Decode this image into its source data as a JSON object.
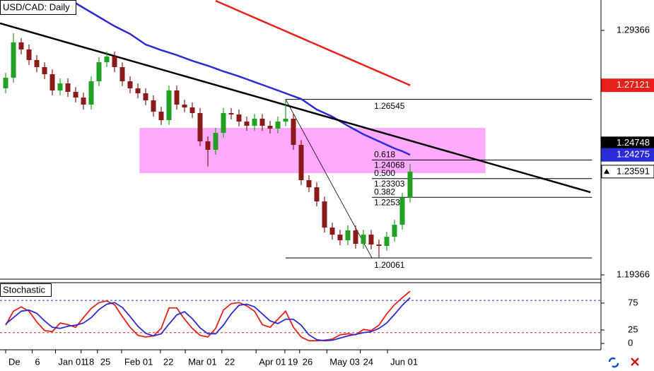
{
  "chart_data": [
    {
      "type": "candlestick",
      "title": "USD/CAD: Daily",
      "xlim": [
        -0.73,
        76.55
      ],
      "ylim": [
        1.19193,
        1.30609
      ],
      "yticks": [
        1.29366,
        1.19366
      ],
      "xticks": [
        {
          "value": 0,
          "label": "De"
        },
        {
          "value": 3.4,
          "label": "6"
        },
        {
          "value": 6.4,
          "label": "Jan 01"
        },
        {
          "value": 9.7,
          "label": "18"
        },
        {
          "value": 11.8,
          "label": "25"
        },
        {
          "value": 14.9,
          "label": "Feb 01"
        },
        {
          "value": 19.9,
          "label": "22"
        },
        {
          "value": 23.1,
          "label": "Mar 01"
        },
        {
          "value": 27.8,
          "label": "22"
        },
        {
          "value": 32.2,
          "label": "Apr 01"
        },
        {
          "value": 35.9,
          "label": "19"
        },
        {
          "value": 37.8,
          "label": "26"
        },
        {
          "value": 41.3,
          "label": "May 03"
        },
        {
          "value": 45.6,
          "label": "24"
        },
        {
          "value": 49.1,
          "label": "Jun 01"
        }
      ],
      "up_color": "#22a022",
      "down_color": "#8b1a1a",
      "open": [
        1.27,
        1.2743,
        1.28875,
        1.28586,
        1.28152,
        1.27863,
        1.27574,
        1.26909,
        1.27198,
        1.26852,
        1.2662,
        1.26331,
        1.27285,
        1.28065,
        1.28297,
        1.27863,
        1.27285,
        1.26996,
        1.26794,
        1.26505,
        1.26042,
        1.25696,
        1.26909,
        1.26331,
        1.26216,
        1.25985,
        1.24828,
        1.24482,
        1.25175,
        1.25985,
        1.25927,
        1.25638,
        1.25464,
        1.25753,
        1.25464,
        1.25349,
        1.25638,
        1.25753,
        1.24684,
        1.23239,
        1.2295,
        1.22372,
        1.21302,
        1.21013,
        1.20782,
        1.21187,
        1.20638,
        1.21013,
        1.20609,
        1.20551,
        1.20927,
        1.21418,
        1.22516
      ],
      "high": [
        1.2763,
        1.2925,
        1.2905,
        1.2879,
        1.2835,
        1.2806,
        1.2777,
        1.274,
        1.274,
        1.2705,
        1.2682,
        1.2749,
        1.2827,
        1.285,
        1.285,
        1.2806,
        1.2749,
        1.272,
        1.27,
        1.2671,
        1.2624,
        1.2711,
        1.2711,
        1.2653,
        1.2642,
        1.2619,
        1.2503,
        1.2538,
        1.2619,
        1.2619,
        1.2613,
        1.2584,
        1.2595,
        1.2595,
        1.2566,
        1.2584,
        1.2654,
        1.2595,
        1.2488,
        1.2344,
        1.2315,
        1.2257,
        1.215,
        1.2121,
        1.2139,
        1.2139,
        1.2121,
        1.2121,
        1.2081,
        1.2113,
        1.2162,
        1.2272,
        1.239
      ],
      "low": [
        1.268,
        1.2723,
        1.2839,
        1.2795,
        1.2766,
        1.2737,
        1.2671,
        1.2671,
        1.2665,
        1.2642,
        1.2613,
        1.2613,
        1.2709,
        1.2787,
        1.2766,
        1.2709,
        1.268,
        1.2659,
        1.2631,
        1.2584,
        1.255,
        1.255,
        1.2613,
        1.2602,
        1.2579,
        1.2463,
        1.238,
        1.2428,
        1.2498,
        1.2573,
        1.2544,
        1.2526,
        1.2526,
        1.2526,
        1.2515,
        1.2515,
        1.2544,
        1.2448,
        1.2304,
        1.2275,
        1.2217,
        1.211,
        1.2081,
        1.2058,
        1.2058,
        1.2044,
        1.2044,
        1.2041,
        1.2006,
        1.2035,
        1.2073,
        1.2122,
        1.2232
      ],
      "close": [
        1.2743,
        1.28875,
        1.28586,
        1.28152,
        1.27863,
        1.27574,
        1.26909,
        1.27198,
        1.26852,
        1.2662,
        1.26331,
        1.27285,
        1.28065,
        1.28297,
        1.27863,
        1.27285,
        1.26996,
        1.26794,
        1.26505,
        1.26042,
        1.25696,
        1.26909,
        1.26331,
        1.26216,
        1.25985,
        1.24828,
        1.24482,
        1.25175,
        1.25985,
        1.25927,
        1.25638,
        1.25464,
        1.25753,
        1.25464,
        1.25349,
        1.25638,
        1.25753,
        1.24684,
        1.23239,
        1.2295,
        1.22372,
        1.21302,
        1.21013,
        1.20782,
        1.21187,
        1.20638,
        1.21013,
        1.20609,
        1.20551,
        1.20927,
        1.21418,
        1.22516,
        1.23591
      ],
      "lines": [
        {
          "color": "#2b2bd6",
          "values": [
            null,
            null,
            null,
            null,
            null,
            null,
            null,
            null,
            1.30667,
            1.30479,
            1.30291,
            1.30103,
            1.29915,
            1.29727,
            1.29539,
            1.2938,
            1.29221,
            1.29005,
            1.28788,
            1.28673,
            1.28557,
            1.28456,
            1.28355,
            1.28239,
            1.28123,
            1.28022,
            1.27921,
            1.27806,
            1.2769,
            1.27589,
            1.27487,
            1.27372,
            1.27256,
            1.27141,
            1.27025,
            1.2691,
            1.26794,
            1.26678,
            1.26562,
            1.26346,
            1.26129,
            1.25985,
            1.2584,
            1.25652,
            1.25464,
            1.25291,
            1.25117,
            1.24973,
            1.24828,
            1.24684,
            1.24539,
            1.24424,
            1.24275
          ]
        },
        {
          "color": "#e8201a",
          "values": [
            null,
            null,
            null,
            null,
            null,
            null,
            null,
            null,
            null,
            null,
            null,
            null,
            null,
            null,
            null,
            null,
            null,
            null,
            null,
            null,
            null,
            null,
            null,
            null,
            null,
            null,
            null,
            1.30577,
            1.30439,
            1.30301,
            1.30162,
            1.30024,
            1.29886,
            1.29748,
            1.29609,
            1.29471,
            1.29333,
            1.29195,
            1.29057,
            1.28918,
            1.2878,
            1.28642,
            1.28504,
            1.28365,
            1.28227,
            1.28089,
            1.27951,
            1.27813,
            1.27674,
            1.27536,
            1.27398,
            1.2726,
            1.27121
          ]
        }
      ],
      "trendline": {
        "x": [
          -0.73,
          75.2
        ],
        "y": [
          1.29655,
          1.22747
        ],
        "price": 1.24748,
        "color": "#000000"
      },
      "zone": {
        "x": [
          17.2,
          61.7
        ],
        "y": [
          1.23528,
          1.25378
        ],
        "color": "#ffaaff"
      },
      "fibonacci": {
        "x": [
          36,
          47.1
        ],
        "extend_to": 75.4,
        "high": 1.26545,
        "low": 1.20061,
        "levels": [
          {
            "ratio": "0.618",
            "price": 1.24068
          },
          {
            "ratio": "0.500",
            "price": 1.23303
          },
          {
            "ratio": "0.382",
            "price": 1.22538
          }
        ]
      }
    },
    {
      "type": "line",
      "title": "Stochastic",
      "xlim": [
        -0.73,
        76.55
      ],
      "ylim": [
        -11.8,
        113
      ],
      "yticks": [
        0,
        25,
        75
      ],
      "levels": [
        {
          "value": 80,
          "color": "#2b2bd6"
        },
        {
          "value": 20,
          "color": "#e8201a"
        }
      ],
      "series": [
        {
          "color": "#e8201a",
          "values": [
            34,
            60,
            68,
            60,
            40,
            24,
            22,
            38,
            35,
            30,
            48,
            65,
            76,
            79,
            72,
            50,
            30,
            15,
            12,
            14,
            28,
            66,
            66,
            45,
            28,
            15,
            12,
            28,
            62,
            74,
            76,
            70,
            60,
            35,
            30,
            45,
            60,
            30,
            12,
            5,
            5,
            6,
            8,
            16,
            18,
            16,
            26,
            24,
            34,
            55,
            72,
            85,
            97
          ]
        },
        {
          "color": "#2b2bd6",
          "values": [
            36,
            48,
            60,
            62,
            56,
            42,
            30,
            28,
            32,
            34,
            38,
            48,
            63,
            73,
            76,
            67,
            50,
            32,
            19,
            14,
            18,
            36,
            53,
            59,
            46,
            29,
            18,
            18,
            34,
            55,
            71,
            73,
            68,
            55,
            42,
            37,
            45,
            45,
            34,
            16,
            7,
            5,
            6,
            10,
            14,
            17,
            20,
            22,
            28,
            38,
            54,
            71,
            85
          ]
        }
      ]
    }
  ]
}
